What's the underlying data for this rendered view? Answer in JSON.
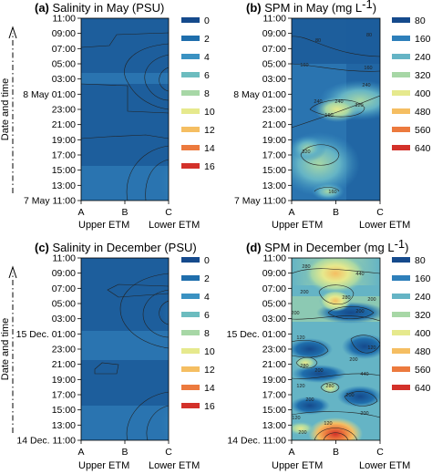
{
  "y_axis_label": "Date and time",
  "axis_ends": {
    "left": "Upper ETM",
    "right": "Lower ETM"
  },
  "chart_data": [
    {
      "type": "heatmap",
      "panel": "(a)",
      "title": "Salinity in May (PSU)",
      "x": [
        "A",
        "B",
        "C"
      ],
      "y_ticks": [
        "7 May 11:00",
        "13:00",
        "15:00",
        "17:00",
        "19:00",
        "21:00",
        "23:00",
        "8 May 01:00",
        "03:00",
        "05:00",
        "07:00",
        "09:00",
        "11:00"
      ],
      "legend": {
        "labels": [
          "0",
          "2",
          "4",
          "6",
          "8",
          "10",
          "12",
          "14",
          "16"
        ],
        "colors": [
          "#154a8c",
          "#1f6eac",
          "#3b92c2",
          "#6cbcbf",
          "#a7d7a6",
          "#e6e98d",
          "#f5be62",
          "#ec7a3e",
          "#d3312a"
        ]
      },
      "grid": false
    },
    {
      "type": "heatmap",
      "panel": "(b)",
      "title": "SPM in May (mg L",
      "title_sup": "-1",
      "title_end": ")",
      "x": [
        "A",
        "B",
        "C"
      ],
      "y_ticks": [
        "7 May 11:00",
        "13:00",
        "15:00",
        "17:00",
        "19:00",
        "21:00",
        "23:00",
        "8 May 01:00",
        "03:00",
        "05:00",
        "07:00",
        "09:00",
        "11:00"
      ],
      "legend": {
        "labels": [
          "80",
          "160",
          "240",
          "320",
          "400",
          "480",
          "560",
          "640"
        ],
        "colors": [
          "#154a8c",
          "#2e7fba",
          "#65b4c5",
          "#a7d7a6",
          "#e6e98d",
          "#f5be62",
          "#ec7a3e",
          "#d3312a"
        ]
      },
      "contour_labels": [
        "80",
        "80",
        "160",
        "160",
        "240",
        "240",
        "320",
        "320",
        "160",
        "240",
        "160"
      ],
      "grid": false
    },
    {
      "type": "heatmap",
      "panel": "(c)",
      "title": "Salinity in December (PSU)",
      "x": [
        "A",
        "B",
        "C"
      ],
      "y_ticks": [
        "14 Dec. 11:00",
        "13:00",
        "15:00",
        "17:00",
        "19:00",
        "21:00",
        "23:00",
        "15 Dec. 01:00",
        "03:00",
        "05:00",
        "07:00",
        "09:00",
        "11:00"
      ],
      "legend": {
        "labels": [
          "0",
          "2",
          "4",
          "6",
          "8",
          "10",
          "12",
          "14",
          "16"
        ],
        "colors": [
          "#154a8c",
          "#1f6eac",
          "#3b92c2",
          "#6cbcbf",
          "#a7d7a6",
          "#e6e98d",
          "#f5be62",
          "#ec7a3e",
          "#d3312a"
        ]
      },
      "grid": false
    },
    {
      "type": "heatmap",
      "panel": "(d)",
      "title": "SPM in December (mg L",
      "title_sup": "-1",
      "title_end": ")",
      "x": [
        "A",
        "B",
        "C"
      ],
      "y_ticks": [
        "14 Dec. 11:00",
        "13:00",
        "15:00",
        "17:00",
        "19:00",
        "21:00",
        "23:00",
        "15 Dec. 01:00",
        "03:00",
        "05:00",
        "07:00",
        "09:00",
        "11:00"
      ],
      "legend": {
        "labels": [
          "80",
          "160",
          "240",
          "320",
          "400",
          "480",
          "560",
          "640"
        ],
        "colors": [
          "#154a8c",
          "#2e7fba",
          "#65b4c5",
          "#a7d7a6",
          "#e6e98d",
          "#f5be62",
          "#ec7a3e",
          "#d3312a"
        ]
      },
      "contour_labels": [
        "280",
        "440",
        "200",
        "200",
        "280",
        "200",
        "200",
        "120",
        "120",
        "200",
        "280",
        "200",
        "440",
        "120",
        "280",
        "200",
        "200",
        "120",
        "120",
        "200",
        "200"
      ],
      "grid": false
    }
  ]
}
